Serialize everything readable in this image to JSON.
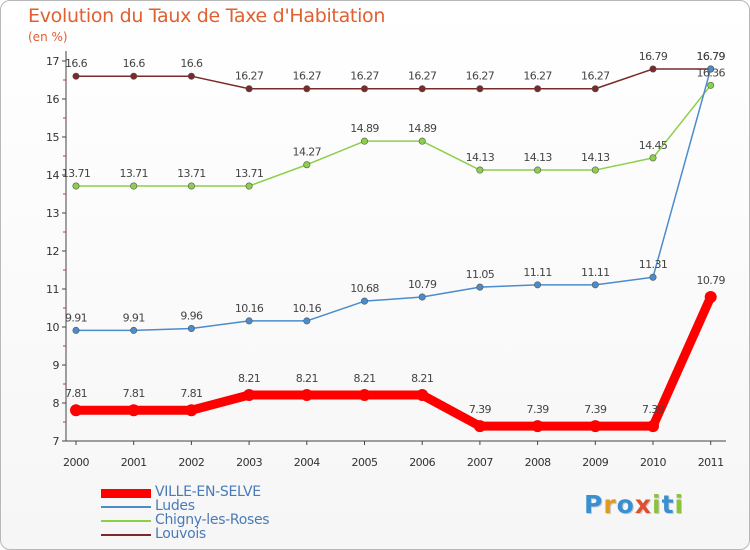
{
  "title": "Evolution du Taux de Taxe d'Habitation",
  "subtitle": "(en %)",
  "logo": {
    "text": "Proxiti",
    "letters": [
      {
        "ch": "P",
        "color": "#3a8fd0"
      },
      {
        "ch": "r",
        "color": "#e09a20"
      },
      {
        "ch": "o",
        "color": "#3a8fd0"
      },
      {
        "ch": "x",
        "color": "#e05030"
      },
      {
        "ch": "i",
        "color": "#8cc23c"
      },
      {
        "ch": "t",
        "color": "#3a8fd0"
      },
      {
        "ch": "i",
        "color": "#8cc23c"
      }
    ]
  },
  "chart_data": {
    "type": "line",
    "title": "Evolution du Taux de Taxe d'Habitation",
    "subtitle": "(en %)",
    "x": [
      "2000",
      "2001",
      "2002",
      "2003",
      "2004",
      "2005",
      "2006",
      "2007",
      "2008",
      "2009",
      "2010",
      "2011"
    ],
    "ylim": [
      7,
      17
    ],
    "yticks": [
      7,
      8,
      9,
      10,
      11,
      12,
      13,
      14,
      15,
      16,
      17
    ],
    "grid": false,
    "legend_position": "bottom-left",
    "series": [
      {
        "name": "VILLE-EN-SELVE",
        "color": "#ff0000",
        "values": [
          7.81,
          7.81,
          7.81,
          8.21,
          8.21,
          8.21,
          8.21,
          7.39,
          7.39,
          7.39,
          7.39,
          10.79
        ],
        "labels": [
          "7.81",
          "7.81",
          "7.81",
          "8.21",
          "8.21",
          "8.21",
          "8.21",
          "7.39",
          "7.39",
          "7.39",
          "7.39",
          "10.79"
        ]
      },
      {
        "name": "Ludes",
        "color": "#4a8ccc",
        "values": [
          9.91,
          9.91,
          9.96,
          10.16,
          10.16,
          10.68,
          10.79,
          11.05,
          11.11,
          11.11,
          11.31,
          16.79
        ],
        "labels": [
          "9.91",
          "9.91",
          "9.96",
          "10.16",
          "10.16",
          "10.68",
          "10.79",
          "11.05",
          "11.11",
          "11.11",
          "11.31",
          "16.79"
        ]
      },
      {
        "name": "Chigny-les-Roses",
        "color": "#8ccf4a",
        "values": [
          13.71,
          13.71,
          13.71,
          13.71,
          14.27,
          14.89,
          14.89,
          14.13,
          14.13,
          14.13,
          14.45,
          16.36
        ],
        "labels": [
          "13.71",
          "13.71",
          "13.71",
          "13.71",
          "14.27",
          "14.89",
          "14.89",
          "14.13",
          "14.13",
          "14.13",
          "14.45",
          "16.36"
        ]
      },
      {
        "name": "Louvois",
        "color": "#7a2a2a",
        "values": [
          16.6,
          16.6,
          16.6,
          16.27,
          16.27,
          16.27,
          16.27,
          16.27,
          16.27,
          16.27,
          16.79,
          16.79
        ],
        "labels": [
          "16.6",
          "16.6",
          "16.6",
          "16.27",
          "16.27",
          "16.27",
          "16.27",
          "16.27",
          "16.27",
          "16.27",
          "16.79",
          "16.79"
        ]
      }
    ]
  }
}
